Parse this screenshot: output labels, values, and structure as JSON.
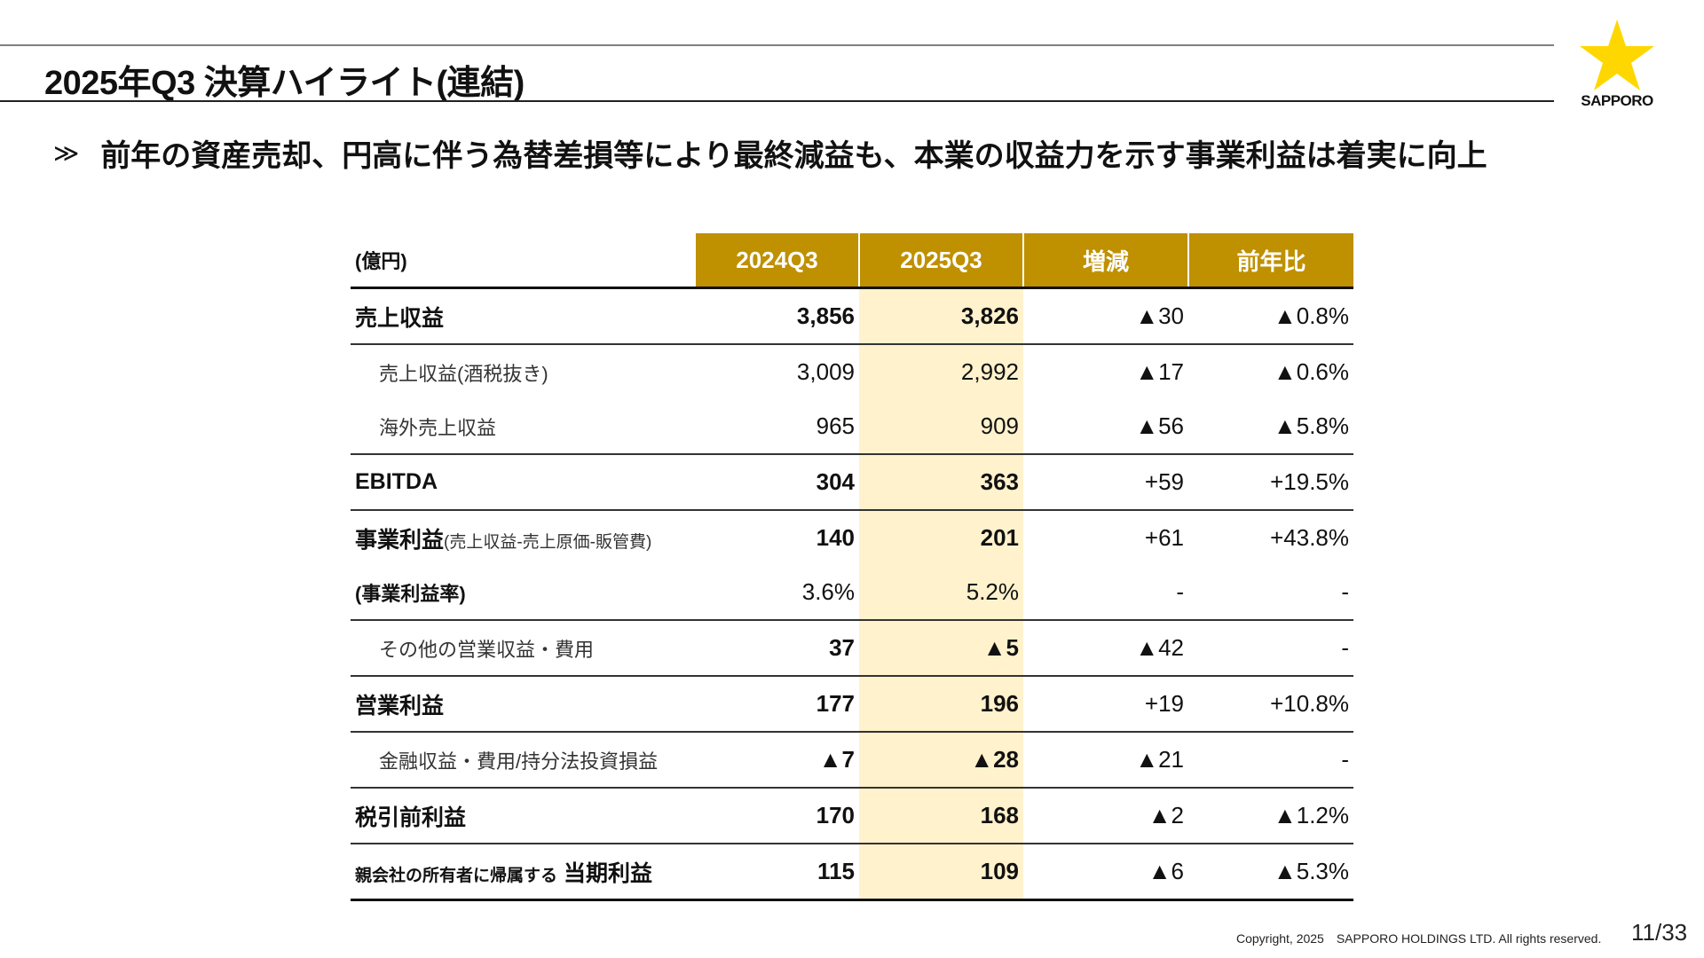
{
  "title": "2025年Q3 決算ハイライト(連結)",
  "logo": {
    "text": "SAPPORO",
    "color": "#FFD700"
  },
  "bullet": {
    "mark": "≫",
    "text": "前年の資産売却、円高に伴う為替差損等により最終減益も、本業の収益力を示す事業利益は着実に向上"
  },
  "table": {
    "unit": "(億円)",
    "headers": [
      "2024Q3",
      "2025Q3",
      "増減",
      "前年比"
    ],
    "header_color": "#BF9000",
    "highlight_color": "#FFF2CC",
    "rows": [
      {
        "label": "売上収益",
        "values": [
          "3,856",
          "3,826",
          "▲30",
          "▲0.8%"
        ]
      },
      {
        "label": "売上収益(酒税抜き)",
        "values": [
          "3,009",
          "2,992",
          "▲17",
          "▲0.6%"
        ]
      },
      {
        "label": "海外売上収益",
        "values": [
          "965",
          "909",
          "▲56",
          "▲5.8%"
        ]
      },
      {
        "label": "EBITDA",
        "values": [
          "304",
          "363",
          "+59",
          "+19.5%"
        ]
      },
      {
        "label": "事業利益",
        "label_note": "(売上収益-売上原価-販管費)",
        "values": [
          "140",
          "201",
          "+61",
          "+43.8%"
        ]
      },
      {
        "label": "(事業利益率)",
        "values": [
          "3.6%",
          "5.2%",
          "-",
          "-"
        ]
      },
      {
        "label": "その他の営業収益・費用",
        "values": [
          "37",
          "▲5",
          "▲42",
          "-"
        ]
      },
      {
        "label": "営業利益",
        "values": [
          "177",
          "196",
          "+19",
          "+10.8%"
        ]
      },
      {
        "label": "金融収益・費用/持分法投資損益",
        "values": [
          "▲7",
          "▲28",
          "▲21",
          "-"
        ]
      },
      {
        "label": "税引前利益",
        "values": [
          "170",
          "168",
          "▲2",
          "▲1.2%"
        ]
      },
      {
        "label_prefix": "親会社の所有者に帰属する",
        "label": "当期利益",
        "values": [
          "115",
          "109",
          "▲6",
          "▲5.3%"
        ]
      }
    ]
  },
  "footer": {
    "copyright": "Copyright, 2025　SAPPORO HOLDINGS LTD.  All rights reserved.",
    "page": "11/33"
  }
}
